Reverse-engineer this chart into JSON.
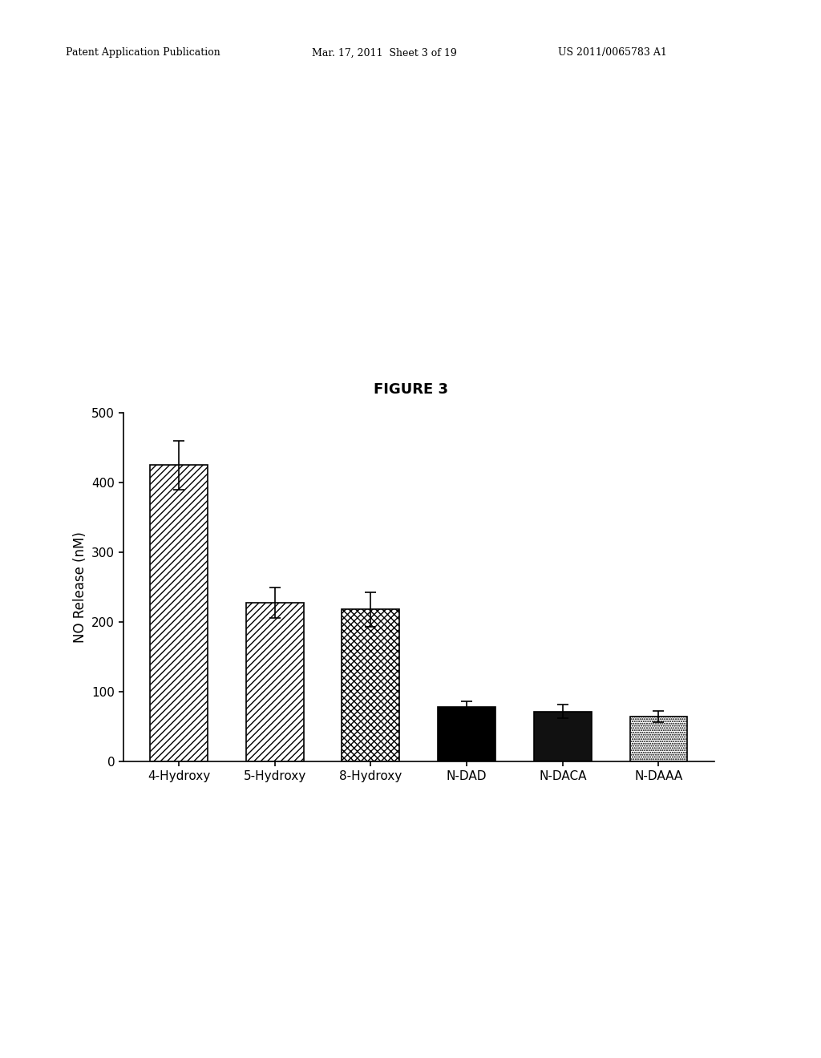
{
  "categories": [
    "4-Hydroxy",
    "5-Hydroxy",
    "8-Hydroxy",
    "N-DAD",
    "N-DACA",
    "N-DAAA"
  ],
  "values": [
    425,
    228,
    218,
    78,
    72,
    65
  ],
  "errors": [
    35,
    22,
    25,
    8,
    10,
    8
  ],
  "ylim": [
    0,
    500
  ],
  "yticks": [
    0,
    100,
    200,
    300,
    400,
    500
  ],
  "ylabel": "NO Release (nM)",
  "figure_title": "FIGURE 3",
  "header_left": "Patent Application Publication",
  "header_mid": "Mar. 17, 2011  Sheet 3 of 19",
  "header_right": "US 2011/0065783 A1",
  "title_fontsize": 13,
  "ylabel_fontsize": 12,
  "tick_fontsize": 11,
  "xlabel_fontsize": 11,
  "background_color": "white",
  "bar_width": 0.6
}
